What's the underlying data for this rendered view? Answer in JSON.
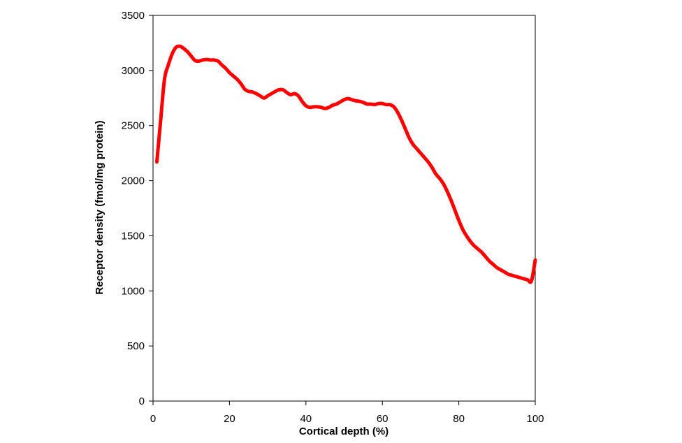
{
  "chart_data": {
    "type": "line",
    "title": "",
    "xlabel": "Cortical depth (%)",
    "ylabel": "Receptor density (fmol/mg protein)",
    "xlim": [
      0,
      100
    ],
    "ylim": [
      0,
      3500
    ],
    "xticks": [
      0,
      20,
      40,
      60,
      80,
      100
    ],
    "yticks": [
      0,
      500,
      1000,
      1500,
      2000,
      2500,
      3000,
      3500
    ],
    "grid": false,
    "legend": "none",
    "series": [
      {
        "color": "#ff0000",
        "x": [
          1,
          2,
          3,
          4,
          5,
          6,
          7,
          8,
          9,
          10,
          11,
          12,
          13,
          14,
          15,
          16,
          17,
          18,
          19,
          20,
          21,
          22,
          23,
          24,
          25,
          26,
          27,
          28,
          29,
          30,
          31,
          32,
          33,
          34,
          35,
          36,
          37,
          38,
          39,
          40,
          41,
          42,
          43,
          44,
          45,
          46,
          47,
          48,
          49,
          50,
          51,
          52,
          53,
          54,
          55,
          56,
          57,
          58,
          59,
          60,
          61,
          62,
          63,
          64,
          65,
          66,
          67,
          68,
          69,
          70,
          71,
          72,
          73,
          74,
          75,
          76,
          77,
          78,
          79,
          80,
          81,
          82,
          83,
          84,
          85,
          86,
          87,
          88,
          89,
          90,
          91,
          92,
          93,
          94,
          95,
          96,
          97,
          98,
          99,
          100
        ],
        "y": [
          2170,
          2550,
          2920,
          3050,
          3150,
          3210,
          3220,
          3200,
          3170,
          3130,
          3090,
          3085,
          3095,
          3100,
          3095,
          3095,
          3085,
          3050,
          3020,
          2980,
          2950,
          2920,
          2880,
          2830,
          2810,
          2805,
          2790,
          2770,
          2750,
          2770,
          2790,
          2810,
          2825,
          2825,
          2800,
          2780,
          2790,
          2770,
          2720,
          2680,
          2665,
          2670,
          2670,
          2665,
          2655,
          2665,
          2685,
          2695,
          2715,
          2735,
          2745,
          2735,
          2725,
          2720,
          2710,
          2695,
          2695,
          2690,
          2700,
          2700,
          2690,
          2690,
          2670,
          2620,
          2550,
          2470,
          2390,
          2330,
          2290,
          2250,
          2210,
          2170,
          2120,
          2060,
          2020,
          1970,
          1900,
          1820,
          1730,
          1640,
          1560,
          1500,
          1450,
          1410,
          1380,
          1350,
          1310,
          1270,
          1240,
          1210,
          1190,
          1170,
          1150,
          1140,
          1130,
          1120,
          1110,
          1100,
          1090,
          1280
        ]
      }
    ]
  }
}
